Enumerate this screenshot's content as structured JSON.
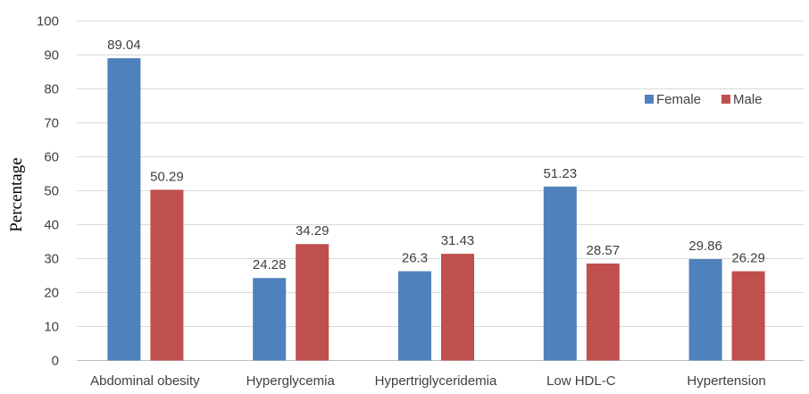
{
  "chart_data": {
    "type": "bar",
    "title": "",
    "xlabel": "",
    "ylabel": "Percentage",
    "ylim": [
      0,
      100
    ],
    "yticks": [
      0,
      10,
      20,
      30,
      40,
      50,
      60,
      70,
      80,
      90,
      100
    ],
    "grid": true,
    "legend_position": "right",
    "categories": [
      "Abdominal obesity",
      "Hyperglycemia",
      "Hypertriglyceridemia",
      "Low HDL-C",
      "Hypertension"
    ],
    "series": [
      {
        "name": "Female",
        "color": "#4f81bd",
        "values": [
          89.04,
          24.28,
          26.3,
          51.23,
          29.86
        ]
      },
      {
        "name": "Male",
        "color": "#c0504d",
        "values": [
          50.29,
          34.29,
          31.43,
          28.57,
          26.29
        ]
      }
    ]
  }
}
